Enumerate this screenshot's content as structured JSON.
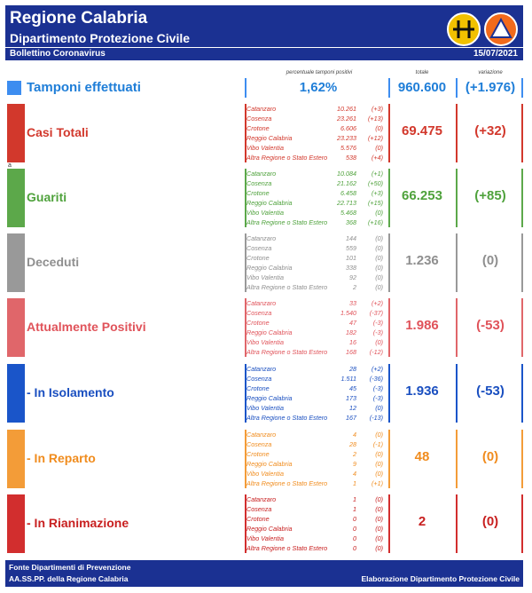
{
  "header": {
    "title": "Regione Calabria",
    "subtitle": "Dipartimento Protezione Civile",
    "bulletin": "Bollettino Coronavirus",
    "date": "15/07/2021"
  },
  "column_headers": {
    "percentage": "percentuale tamponi positivi",
    "total": "totale",
    "variation": "variazione"
  },
  "tamponi": {
    "label": "Tamponi effettuati",
    "percentage": "1,62%",
    "total": "960.600",
    "variation": "(+1.976)"
  },
  "marker_a": "a",
  "rows": [
    {
      "label": "Casi Totali",
      "color": "#d2382c",
      "text_color": "#d2382c",
      "total": "69.475",
      "variation": "(+32)",
      "provinces": [
        {
          "name": "Catanzaro",
          "value": "10.261",
          "var": "(+3)"
        },
        {
          "name": "Cosenza",
          "value": "23.261",
          "var": "(+13)"
        },
        {
          "name": "Crotone",
          "value": "6.606",
          "var": "(0)"
        },
        {
          "name": "Reggio Calabria",
          "value": "23.233",
          "var": "(+12)"
        },
        {
          "name": "Vibo Valentia",
          "value": "5.576",
          "var": "(0)"
        },
        {
          "name": "Altra Regione o Stato Estero",
          "value": "538",
          "var": "(+4)"
        }
      ]
    },
    {
      "label": "Guariti",
      "color": "#5ca84a",
      "text_color": "#4fa23c",
      "total": "66.253",
      "variation": "(+85)",
      "provinces": [
        {
          "name": "Catanzaro",
          "value": "10.084",
          "var": "(+1)"
        },
        {
          "name": "Cosenza",
          "value": "21.162",
          "var": "(+50)"
        },
        {
          "name": "Crotone",
          "value": "6.458",
          "var": "(+3)"
        },
        {
          "name": "Reggio Calabria",
          "value": "22.713",
          "var": "(+15)"
        },
        {
          "name": "Vibo Valentia",
          "value": "5.468",
          "var": "(0)"
        },
        {
          "name": "Altra Regione o Stato Estero",
          "value": "368",
          "var": "(+16)"
        }
      ]
    },
    {
      "label": "Deceduti",
      "color": "#999999",
      "text_color": "#8f8f8f",
      "total": "1.236",
      "variation": "(0)",
      "provinces": [
        {
          "name": "Catanzaro",
          "value": "144",
          "var": "(0)"
        },
        {
          "name": "Cosenza",
          "value": "559",
          "var": "(0)"
        },
        {
          "name": "Crotone",
          "value": "101",
          "var": "(0)"
        },
        {
          "name": "Reggio Calabria",
          "value": "338",
          "var": "(0)"
        },
        {
          "name": "Vibo Valentia",
          "value": "92",
          "var": "(0)"
        },
        {
          "name": "Altra Regione o Stato Estero",
          "value": "2",
          "var": "(0)"
        }
      ]
    },
    {
      "label": "Attualmente Positivi",
      "color": "#e0666a",
      "text_color": "#e0535a",
      "total": "1.986",
      "variation": "(-53)",
      "provinces": [
        {
          "name": "Catanzaro",
          "value": "33",
          "var": "(+2)"
        },
        {
          "name": "Cosenza",
          "value": "1.540",
          "var": "(-37)"
        },
        {
          "name": "Crotone",
          "value": "47",
          "var": "(-3)"
        },
        {
          "name": "Reggio Calabria",
          "value": "182",
          "var": "(-3)"
        },
        {
          "name": "Vibo Valentia",
          "value": "16",
          "var": "(0)"
        },
        {
          "name": "Altra Regione o Stato Estero",
          "value": "168",
          "var": "(-12)"
        }
      ]
    },
    {
      "label": "- In Isolamento",
      "color": "#1a55c9",
      "text_color": "#1a4fc0",
      "total": "1.936",
      "variation": "(-53)",
      "provinces": [
        {
          "name": "Catanzaro",
          "value": "28",
          "var": "(+2)"
        },
        {
          "name": "Cosenza",
          "value": "1.511",
          "var": "(-36)"
        },
        {
          "name": "Crotone",
          "value": "45",
          "var": "(-3)"
        },
        {
          "name": "Reggio Calabria",
          "value": "173",
          "var": "(-3)"
        },
        {
          "name": "Vibo Valentia",
          "value": "12",
          "var": "(0)"
        },
        {
          "name": "Altra Regione o Stato Estero",
          "value": "167",
          "var": "(-13)"
        }
      ]
    },
    {
      "label": "- In Reparto",
      "color": "#f39c38",
      "text_color": "#f08c1e",
      "total": "48",
      "variation": "(0)",
      "provinces": [
        {
          "name": "Catanzaro",
          "value": "4",
          "var": "(0)"
        },
        {
          "name": "Cosenza",
          "value": "28",
          "var": "(-1)"
        },
        {
          "name": "Crotone",
          "value": "2",
          "var": "(0)"
        },
        {
          "name": "Reggio Calabria",
          "value": "9",
          "var": "(0)"
        },
        {
          "name": "Vibo Valentia",
          "value": "4",
          "var": "(0)"
        },
        {
          "name": "Altra Regione o Stato Estero",
          "value": "1",
          "var": "(+1)"
        }
      ]
    },
    {
      "label": "- In Rianimazione",
      "color": "#d22e2e",
      "text_color": "#c82020",
      "total": "2",
      "variation": "(0)",
      "provinces": [
        {
          "name": "Catanzaro",
          "value": "1",
          "var": "(0)"
        },
        {
          "name": "Cosenza",
          "value": "1",
          "var": "(0)"
        },
        {
          "name": "Crotone",
          "value": "0",
          "var": "(0)"
        },
        {
          "name": "Reggio Calabria",
          "value": "0",
          "var": "(0)"
        },
        {
          "name": "Vibo Valentia",
          "value": "0",
          "var": "(0)"
        },
        {
          "name": "Altra Regione o Stato Estero",
          "value": "0",
          "var": "(0)"
        }
      ]
    }
  ],
  "footer": {
    "source_line1": "Fonte Dipartimenti di Prevenzione",
    "source_line2": "AA.SS.PP.  della Regione Calabria",
    "credit": "Elaborazione Dipartimento Protezione Civile"
  }
}
